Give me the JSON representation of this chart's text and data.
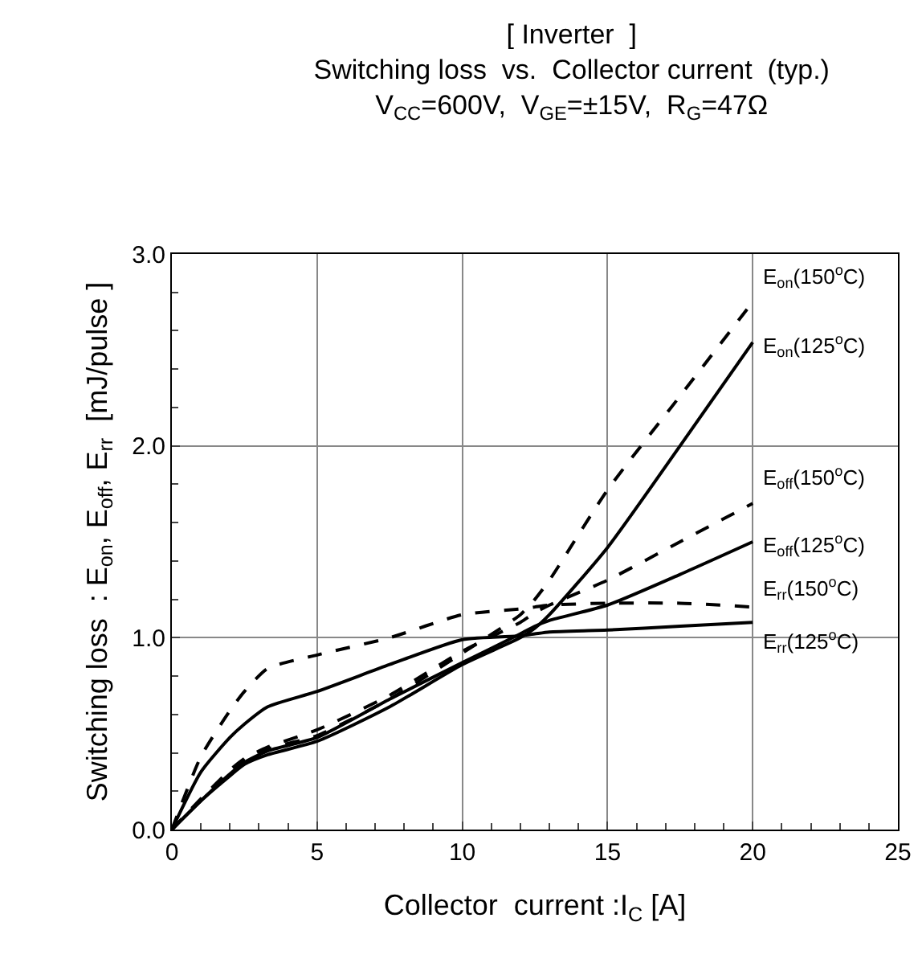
{
  "chart_data": {
    "type": "line",
    "title": "[ Inverter  ]\nSwitching loss  vs.  Collector current  (typ.)",
    "subtitle": "V$_{CC}$=600V,  V$_{GE}$=±15V,  R$_{G}$=47Ω",
    "xlabel": "Collector  current :I$_{C}$ [A]",
    "ylabel": "Switching loss  : E$_{on}$, E$_{off}$, E$_{rr}$  [mJ/pulse ]",
    "x": [
      0,
      1,
      2,
      2.5,
      3.3,
      5,
      7.5,
      10,
      12,
      12.5,
      13,
      15,
      17.5,
      20
    ],
    "series": [
      {
        "name": "E$_{on}$(150$^{o}$C)",
        "color": "#000000",
        "line_style": "dashed",
        "values": [
          0,
          0.16,
          0.3,
          0.36,
          0.42,
          0.49,
          0.68,
          0.92,
          1.12,
          1.2,
          1.3,
          1.77,
          2.26,
          2.75
        ]
      },
      {
        "name": "E$_{on}$(125$^{o}$C)",
        "color": "#000000",
        "line_style": "solid",
        "values": [
          0,
          0.15,
          0.28,
          0.34,
          0.39,
          0.46,
          0.64,
          0.86,
          1.0,
          1.05,
          1.12,
          1.47,
          2.0,
          2.54
        ]
      },
      {
        "name": "E$_{off}$(150$^{o}$C)",
        "color": "#000000",
        "line_style": "dashed",
        "values": [
          0,
          0.16,
          0.31,
          0.37,
          0.43,
          0.52,
          0.7,
          0.93,
          1.08,
          1.13,
          1.17,
          1.3,
          1.5,
          1.7
        ]
      },
      {
        "name": "E$_{off}$(125$^{o}$C)",
        "color": "#000000",
        "line_style": "solid",
        "values": [
          0,
          0.15,
          0.29,
          0.35,
          0.41,
          0.48,
          0.68,
          0.87,
          1.02,
          1.06,
          1.09,
          1.17,
          1.33,
          1.5
        ]
      },
      {
        "name": "E$_{rr}$(150$^{o}$C)",
        "color": "#000000",
        "line_style": "dashed",
        "values": [
          0,
          0.38,
          0.62,
          0.72,
          0.84,
          0.91,
          1.0,
          1.12,
          1.15,
          1.16,
          1.17,
          1.18,
          1.18,
          1.16
        ]
      },
      {
        "name": "E$_{rr}$(125$^{o}$C)",
        "color": "#000000",
        "line_style": "solid",
        "values": [
          0,
          0.3,
          0.48,
          0.55,
          0.64,
          0.72,
          0.86,
          0.99,
          1.01,
          1.02,
          1.03,
          1.04,
          1.06,
          1.08
        ]
      }
    ],
    "xlim": [
      0,
      25
    ],
    "xticks": [
      0,
      5,
      10,
      15,
      20,
      25
    ],
    "ylim": [
      0,
      3
    ],
    "yticks": [
      {
        "value": 0,
        "label": "0.0"
      },
      {
        "value": 1,
        "label": "1.0"
      },
      {
        "value": 2,
        "label": "2.0"
      },
      {
        "value": 3,
        "label": "3.0"
      }
    ],
    "grid": true,
    "legend": false,
    "marker": "none"
  }
}
